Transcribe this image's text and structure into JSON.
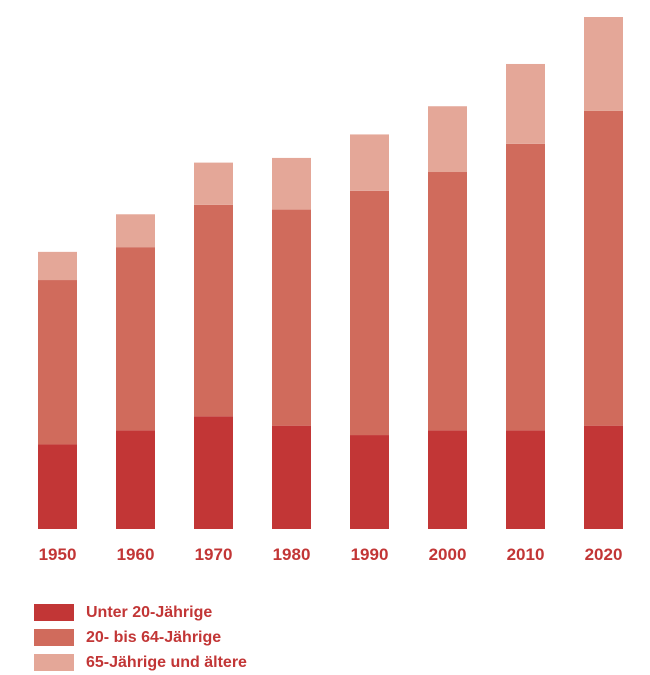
{
  "chart_data": {
    "type": "bar",
    "stacked": true,
    "categories": [
      "1950",
      "1960",
      "1970",
      "1980",
      "1990",
      "2000",
      "2010",
      "2020"
    ],
    "series": [
      {
        "name": "Unter 20-Jährige",
        "color": "#c23636",
        "values": [
          1.8,
          2.1,
          2.4,
          2.2,
          2.0,
          2.1,
          2.1,
          2.2
        ]
      },
      {
        "name": "20- bis 64-Jährige",
        "color": "#d06b5c",
        "values": [
          3.5,
          3.9,
          4.5,
          4.6,
          5.2,
          5.5,
          6.1,
          6.7
        ]
      },
      {
        "name": "65-Jährige und ältere",
        "color": "#e4a798",
        "values": [
          0.6,
          0.7,
          0.9,
          1.1,
          1.2,
          1.4,
          1.7,
          2.0
        ]
      }
    ],
    "ylim": [
      0,
      10.9
    ],
    "tick_color": "#c23636",
    "grid": false,
    "legend_position": "bottom-left"
  }
}
